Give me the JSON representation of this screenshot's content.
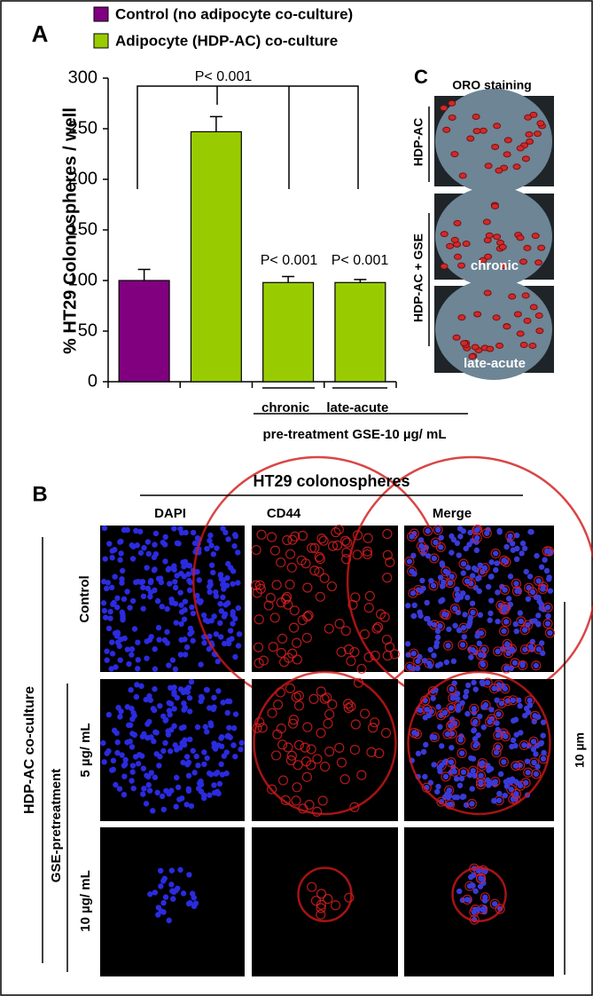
{
  "chart_data": {
    "type": "bar",
    "panel_label": "A",
    "ylabel": "% HT29 Colonospheres / well",
    "categories": [
      null,
      null,
      "chronic",
      "late-acute"
    ],
    "group_label": "pre-treatment GSE-10 µg/ mL",
    "series": [
      {
        "name": "Control (no adipocyte co-culture)",
        "color": "#800080",
        "values": [
          100,
          null,
          null,
          null
        ],
        "errors": [
          11,
          null,
          null,
          null
        ]
      },
      {
        "name": "Adipocyte (HDP-AC) co-culture",
        "color": "#99cc00",
        "values": [
          null,
          247,
          98,
          98
        ],
        "errors": [
          null,
          15,
          6,
          3
        ]
      }
    ],
    "annotations": [
      {
        "text": "P< 0.001"
      },
      {
        "text": "P< 0.001"
      },
      {
        "text": "P< 0.001"
      }
    ],
    "ylim": [
      0,
      300
    ],
    "yticks": [
      0,
      50,
      100,
      150,
      200,
      250,
      300
    ]
  },
  "panel_c": {
    "label": "C",
    "title": "ORO staining",
    "row_labels": [
      "HDP-AC",
      "HDP-AC + GSE"
    ],
    "image_labels": [
      "chronic",
      "late-acute"
    ]
  },
  "panel_b": {
    "label": "B",
    "title": "HT29 colonospheres",
    "columns": [
      "DAPI",
      "CD44",
      "Merge"
    ],
    "side_label": "HDP-AC co-culture",
    "group_label": "GSE-pretreatment",
    "rows": [
      "Control",
      "5 µg/ mL",
      "10 µg/ mL"
    ],
    "scale_label": "10 µm"
  }
}
